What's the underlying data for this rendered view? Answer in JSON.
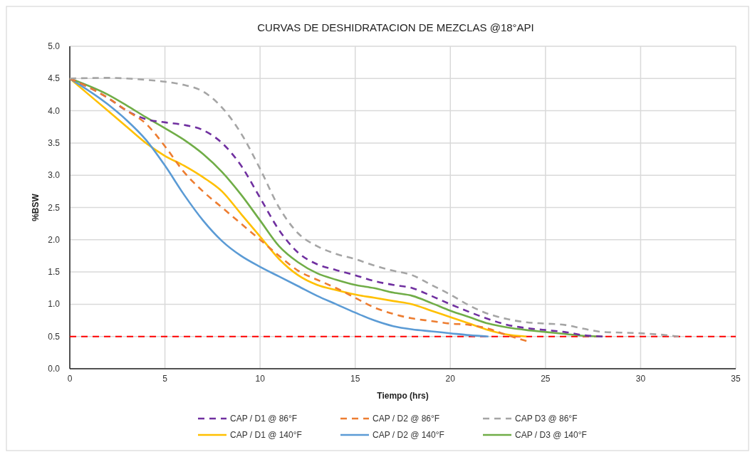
{
  "chart_data": {
    "type": "line",
    "title": "CURVAS DE DESHIDRATACION DE MEZCLAS @18°API",
    "xlabel": "Tiempo (hrs)",
    "ylabel": "%BSW",
    "xlim": [
      0,
      35
    ],
    "xticks": [
      0,
      5,
      10,
      15,
      20,
      25,
      30,
      35
    ],
    "ylim": [
      0,
      5
    ],
    "yticks": [
      {
        "value": 0,
        "label": "0.0"
      },
      {
        "value": 0.5,
        "label": "0.5"
      },
      {
        "value": 1,
        "label": "1.0"
      },
      {
        "value": 1.5,
        "label": "1.5"
      },
      {
        "value": 2,
        "label": "2.0"
      },
      {
        "value": 2.5,
        "label": "2.5"
      },
      {
        "value": 3,
        "label": "3.0"
      },
      {
        "value": 3.5,
        "label": "3.5"
      },
      {
        "value": 4,
        "label": "4.0"
      },
      {
        "value": 4.5,
        "label": "4.5"
      },
      {
        "value": 5,
        "label": "5.0"
      }
    ],
    "grid": true,
    "legend": "bottom",
    "marker": "none",
    "ref_lines": [
      {
        "axis": "y",
        "value": 0.5,
        "color": "#ff0000",
        "line_style": "dashed"
      }
    ],
    "series": [
      {
        "name": "CAP / D1 @ 86°F",
        "color": "#7030a0",
        "line_style": "dashed",
        "x": [
          0,
          2,
          3,
          4,
          5,
          6,
          7,
          8,
          9,
          10,
          11,
          12,
          13,
          14,
          15,
          16,
          17,
          18,
          19,
          20,
          21,
          22,
          23,
          24,
          25,
          26,
          27,
          28
        ],
        "values": [
          4.5,
          4.2,
          4.0,
          3.87,
          3.82,
          3.78,
          3.7,
          3.5,
          3.15,
          2.65,
          2.15,
          1.8,
          1.62,
          1.53,
          1.45,
          1.36,
          1.3,
          1.25,
          1.13,
          1.0,
          0.88,
          0.77,
          0.68,
          0.63,
          0.6,
          0.57,
          0.52,
          0.5
        ]
      },
      {
        "name": "CAP / D2 @ 86°F",
        "color": "#ed7d31",
        "line_style": "dashed",
        "x": [
          0,
          2,
          3,
          4,
          5,
          6,
          7,
          8,
          9,
          10,
          11,
          12,
          13,
          14,
          15,
          16,
          17,
          18,
          19,
          20,
          21,
          22,
          23,
          24
        ],
        "values": [
          4.5,
          4.2,
          4.0,
          3.8,
          3.45,
          3.05,
          2.75,
          2.5,
          2.25,
          2.0,
          1.75,
          1.52,
          1.38,
          1.25,
          1.1,
          0.95,
          0.85,
          0.78,
          0.74,
          0.7,
          0.68,
          0.62,
          0.52,
          0.43
        ]
      },
      {
        "name": "CAP D3 @ 86°F",
        "color": "#a5a5a5",
        "line_style": "dashed",
        "x": [
          0,
          2,
          3,
          4,
          5,
          6,
          7,
          8,
          9,
          10,
          11,
          12,
          13,
          14,
          15,
          16,
          17,
          18,
          19,
          20,
          21,
          22,
          23,
          24,
          25,
          26,
          27,
          28,
          29,
          30,
          31,
          32
        ],
        "values": [
          4.5,
          4.51,
          4.5,
          4.48,
          4.45,
          4.4,
          4.3,
          4.05,
          3.65,
          3.1,
          2.5,
          2.1,
          1.9,
          1.78,
          1.7,
          1.6,
          1.52,
          1.45,
          1.3,
          1.15,
          0.98,
          0.85,
          0.77,
          0.72,
          0.7,
          0.68,
          0.62,
          0.57,
          0.56,
          0.55,
          0.53,
          0.5
        ]
      },
      {
        "name": "CAP / D1 @ 140°F",
        "color": "#ffc000",
        "line_style": "solid",
        "x": [
          0,
          2,
          3,
          4,
          5,
          6,
          7,
          8,
          9,
          10,
          11,
          12,
          13,
          14,
          15,
          16,
          17,
          18,
          19,
          20,
          21,
          22,
          23,
          24
        ],
        "values": [
          4.5,
          4.0,
          3.75,
          3.5,
          3.3,
          3.15,
          2.97,
          2.75,
          2.4,
          2.05,
          1.7,
          1.45,
          1.3,
          1.22,
          1.15,
          1.1,
          1.05,
          1.0,
          0.9,
          0.8,
          0.7,
          0.6,
          0.53,
          0.5
        ]
      },
      {
        "name": "CAP / D2 @ 140°F",
        "color": "#5b9bd5",
        "line_style": "solid",
        "x": [
          0,
          2,
          3,
          4,
          5,
          6,
          7,
          8,
          9,
          10,
          11,
          12,
          13,
          14,
          15,
          16,
          17,
          18,
          19,
          20,
          21,
          22
        ],
        "values": [
          4.5,
          4.1,
          3.85,
          3.55,
          3.15,
          2.7,
          2.3,
          1.98,
          1.75,
          1.58,
          1.43,
          1.28,
          1.13,
          1.0,
          0.87,
          0.75,
          0.66,
          0.61,
          0.58,
          0.55,
          0.52,
          0.5
        ]
      },
      {
        "name": "CAP / D3 @ 140°F",
        "color": "#70ad47",
        "line_style": "solid",
        "x": [
          0,
          2,
          3,
          4,
          5,
          6,
          7,
          8,
          9,
          10,
          11,
          12,
          13,
          14,
          15,
          16,
          17,
          18,
          19,
          20,
          21,
          22,
          23,
          24,
          25,
          26,
          27,
          28
        ],
        "values": [
          4.5,
          4.25,
          4.08,
          3.9,
          3.73,
          3.55,
          3.33,
          3.05,
          2.7,
          2.3,
          1.9,
          1.65,
          1.48,
          1.38,
          1.3,
          1.25,
          1.18,
          1.13,
          1.02,
          0.9,
          0.8,
          0.7,
          0.64,
          0.6,
          0.57,
          0.54,
          0.51,
          0.5
        ]
      }
    ]
  }
}
